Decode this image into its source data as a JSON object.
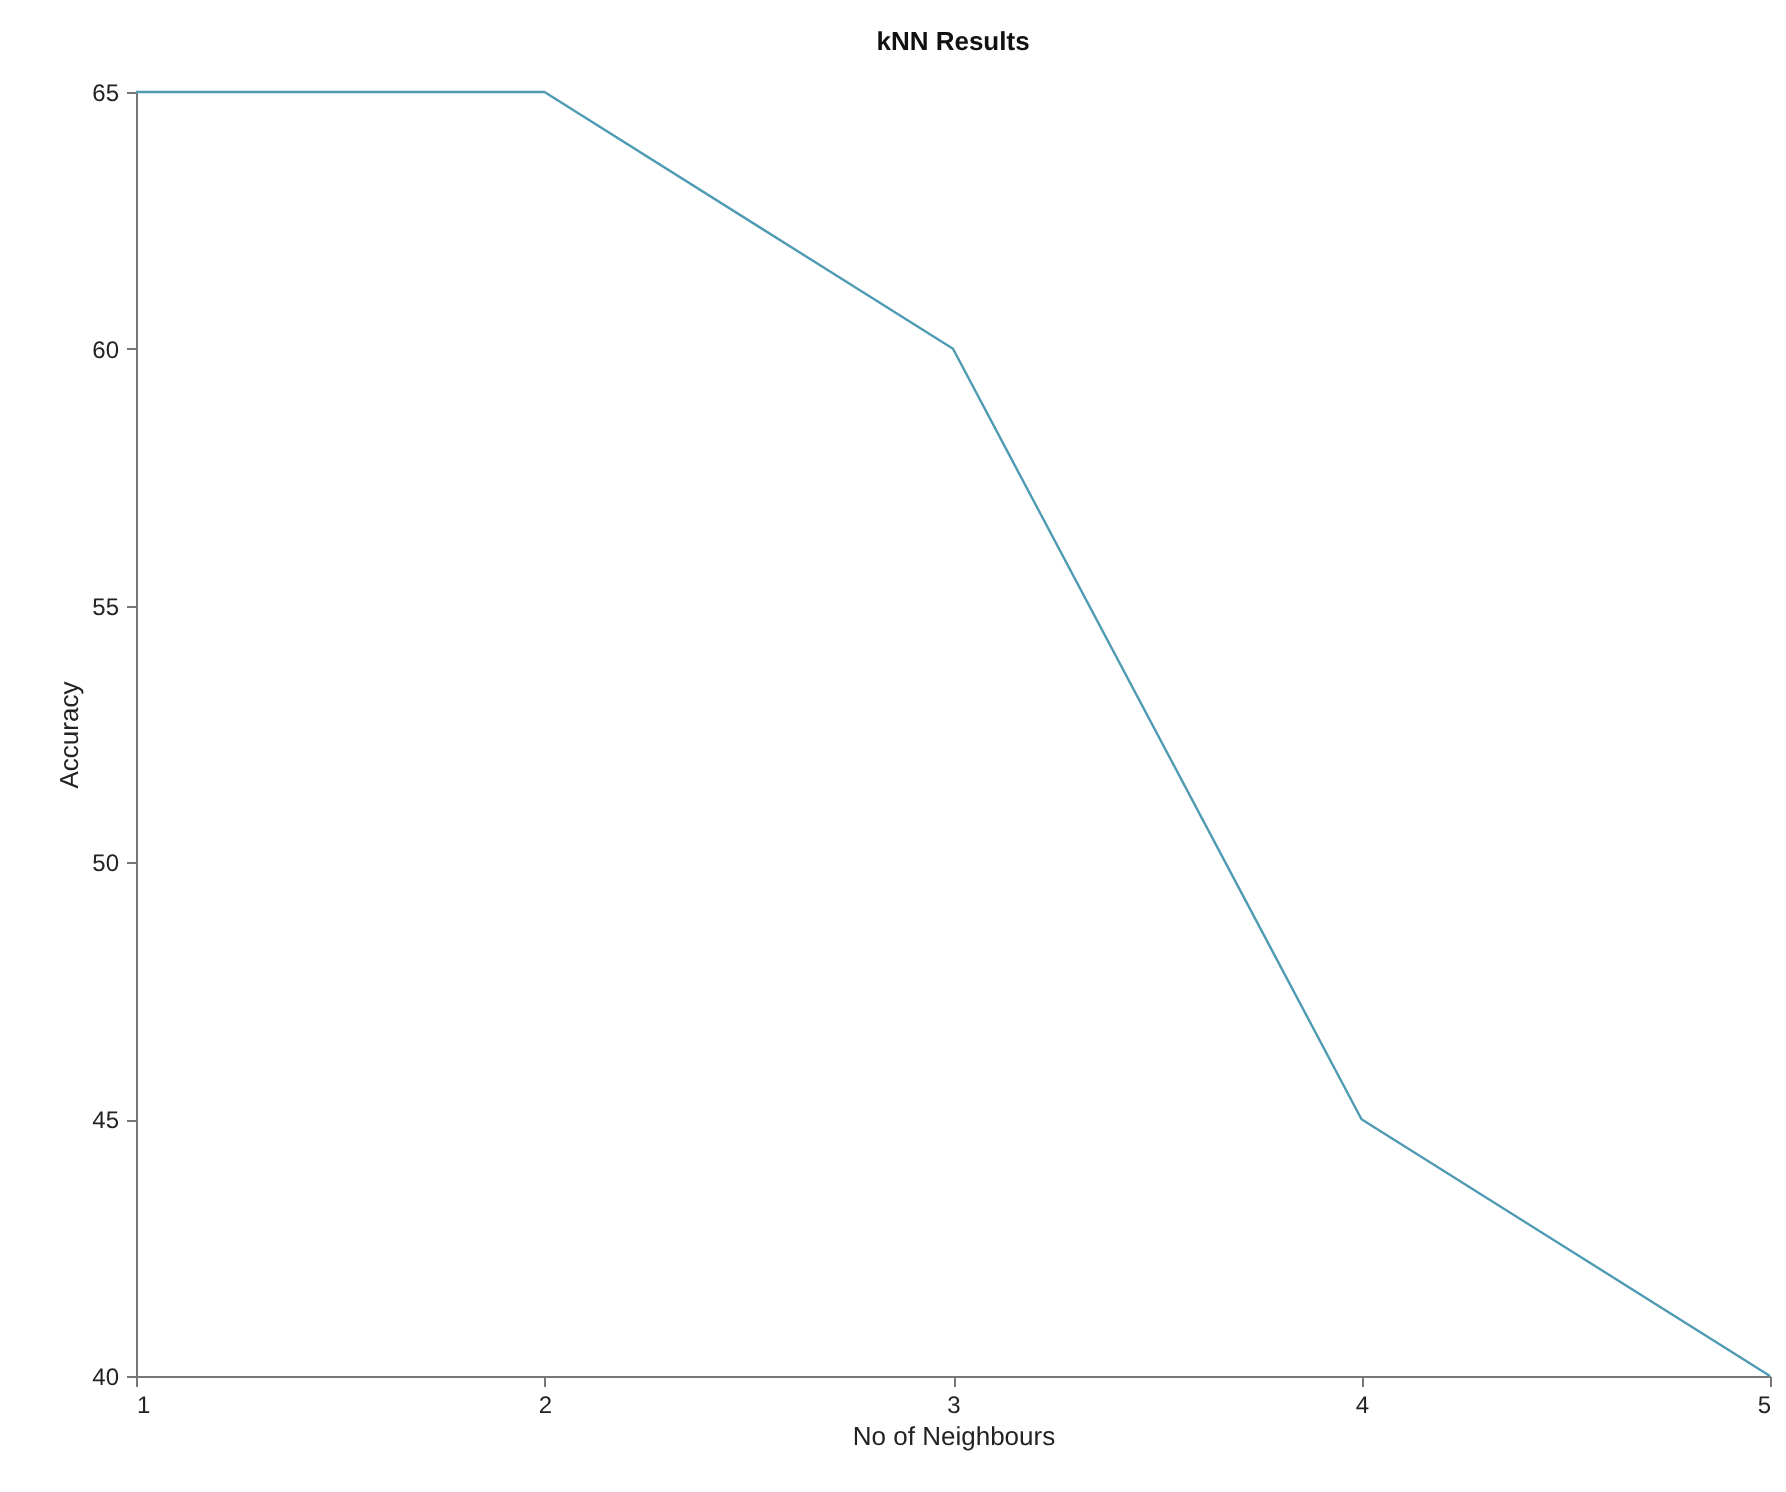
{
  "chart_data": {
    "type": "line",
    "title": "kNN Results",
    "xlabel": "No of Neighbours",
    "ylabel": "Accuracy",
    "x": [
      1,
      2,
      3,
      4,
      5
    ],
    "series": [
      {
        "color": "#4f9bb3",
        "values": [
          65,
          65,
          60,
          45,
          40
        ]
      }
    ],
    "xlim": [
      1,
      5
    ],
    "xticks": [
      1,
      2,
      3,
      4,
      5
    ],
    "ylim": [
      40,
      65
    ],
    "yticks": [
      40,
      45,
      50,
      55,
      60,
      65
    ],
    "grid": false
  }
}
